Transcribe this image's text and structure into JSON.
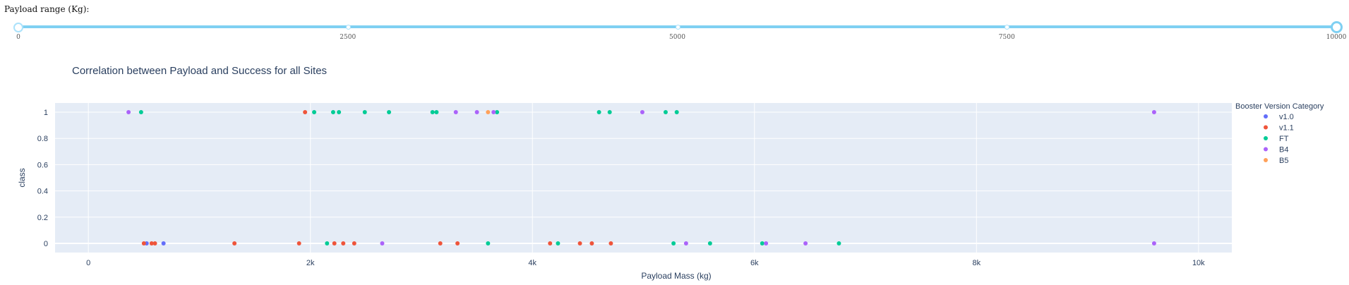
{
  "slider": {
    "label": "Payload range (Kg):",
    "min": 0,
    "max": 10000,
    "value_low": 0,
    "value_high": 10000,
    "marks": [
      {
        "value": 0,
        "label": "0"
      },
      {
        "value": 2500,
        "label": "2500"
      },
      {
        "value": 5000,
        "label": "5000"
      },
      {
        "value": 7500,
        "label": "7500"
      },
      {
        "value": 10000,
        "label": "10000"
      }
    ],
    "rail_color": "#abe2fb",
    "track_color": "#7fd0f2"
  },
  "chart_data": {
    "type": "scatter",
    "title": "Correlation between Payload and Success for all Sites",
    "xlabel": "Payload Mass (kg)",
    "ylabel": "class",
    "xlim": [
      -300,
      10300
    ],
    "ylim": [
      -0.07,
      1.07
    ],
    "x_ticks": [
      {
        "v": 0,
        "label": "0"
      },
      {
        "v": 2000,
        "label": "2k"
      },
      {
        "v": 4000,
        "label": "4k"
      },
      {
        "v": 6000,
        "label": "6k"
      },
      {
        "v": 8000,
        "label": "8k"
      },
      {
        "v": 10000,
        "label": "10k"
      }
    ],
    "y_ticks": [
      {
        "v": 0,
        "label": "0"
      },
      {
        "v": 0.2,
        "label": "0.2"
      },
      {
        "v": 0.4,
        "label": "0.4"
      },
      {
        "v": 0.6,
        "label": "0.6"
      },
      {
        "v": 0.8,
        "label": "0.8"
      },
      {
        "v": 1,
        "label": "1"
      }
    ],
    "grid": true,
    "plot_bg": "#e5ecf6",
    "legend_title": "Booster Version Category",
    "legend_position": "right",
    "series": [
      {
        "name": "v1.0",
        "color": "#636efa",
        "points": [
          [
            525,
            0
          ],
          [
            677,
            0
          ]
        ]
      },
      {
        "name": "v1.1",
        "color": "#ef553b",
        "points": [
          [
            500,
            0
          ],
          [
            570,
            0
          ],
          [
            600,
            0
          ],
          [
            1316,
            0
          ],
          [
            1898,
            0
          ],
          [
            1952,
            1
          ],
          [
            2216,
            0
          ],
          [
            2296,
            0
          ],
          [
            2395,
            0
          ],
          [
            3170,
            0
          ],
          [
            3325,
            0
          ],
          [
            4159,
            0
          ],
          [
            4428,
            0
          ],
          [
            4535,
            0
          ],
          [
            4707,
            0
          ]
        ]
      },
      {
        "name": "FT",
        "color": "#00cc96",
        "points": [
          [
            475,
            1
          ],
          [
            2034,
            1
          ],
          [
            2150,
            0
          ],
          [
            2205,
            1
          ],
          [
            2257,
            1
          ],
          [
            2490,
            1
          ],
          [
            2708,
            1
          ],
          [
            3100,
            1
          ],
          [
            3136,
            1
          ],
          [
            3600,
            0
          ],
          [
            3681,
            1
          ],
          [
            4230,
            0
          ],
          [
            4600,
            1
          ],
          [
            4696,
            1
          ],
          [
            5271,
            0
          ],
          [
            5200,
            1
          ],
          [
            5300,
            1
          ],
          [
            5600,
            0
          ],
          [
            6070,
            0
          ],
          [
            6761,
            0
          ]
        ]
      },
      {
        "name": "B4",
        "color": "#ab63fa",
        "points": [
          [
            362,
            1
          ],
          [
            2647,
            0
          ],
          [
            3310,
            1
          ],
          [
            3500,
            1
          ],
          [
            3650,
            1
          ],
          [
            4990,
            1
          ],
          [
            5384,
            0
          ],
          [
            6104,
            0
          ],
          [
            6460,
            0
          ],
          [
            9600,
            1
          ],
          [
            9600,
            0
          ]
        ]
      },
      {
        "name": "B5",
        "color": "#ffa15a",
        "points": [
          [
            3600,
            1
          ]
        ]
      }
    ]
  }
}
